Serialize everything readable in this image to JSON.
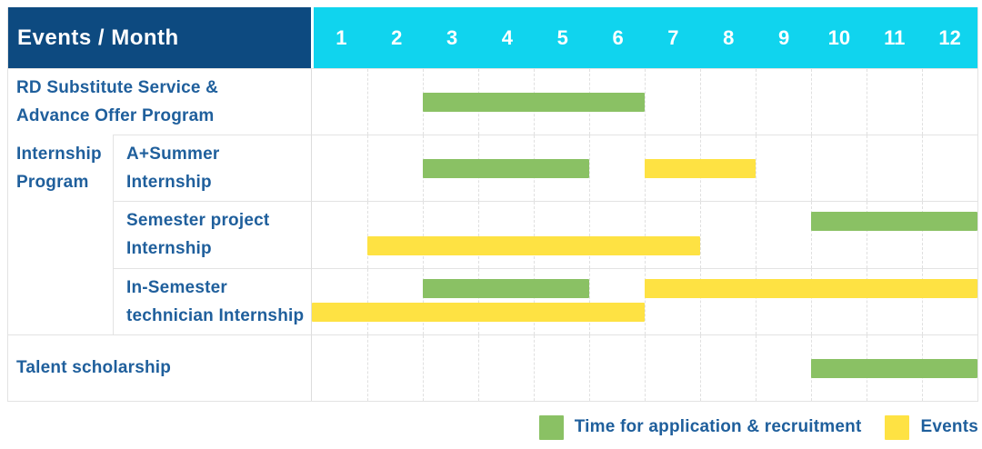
{
  "header": {
    "title": "Events / Month",
    "months": [
      "1",
      "2",
      "3",
      "4",
      "5",
      "6",
      "7",
      "8",
      "9",
      "10",
      "11",
      "12"
    ]
  },
  "colors": {
    "header_bg": "#0d4a80",
    "months_bg": "#10d4ee",
    "label_text": "#1f5f9c",
    "application": "#8ac164",
    "events": "#fee243"
  },
  "legend": {
    "items": [
      {
        "key": "application",
        "label": "Time for application & recruitment",
        "color": "#8ac164"
      },
      {
        "key": "events",
        "label": "Events",
        "color": "#fee243"
      }
    ]
  },
  "chart_data": {
    "type": "gantt",
    "unit": "month",
    "x_range": [
      1,
      12
    ],
    "group_label_lines": [
      "Internship",
      "Program"
    ],
    "rows": [
      {
        "group": null,
        "label_lines": [
          "RD Substitute Service &",
          "Advance Offer Program"
        ],
        "lanes": [
          [
            {
              "type": "application",
              "start_month": 3,
              "end_month": 6
            }
          ]
        ]
      },
      {
        "group": "Internship Program",
        "label_lines": [
          "A+Summer",
          "Internship"
        ],
        "lanes": [
          [
            {
              "type": "application",
              "start_month": 3,
              "end_month": 5
            },
            {
              "type": "events",
              "start_month": 7,
              "end_month": 8
            }
          ]
        ]
      },
      {
        "group": "Internship Program",
        "label_lines": [
          "Semester project",
          "Internship"
        ],
        "lanes": [
          [
            {
              "type": "application",
              "start_month": 10,
              "end_month": 12
            }
          ],
          [
            {
              "type": "events",
              "start_month": 2,
              "end_month": 7
            }
          ]
        ]
      },
      {
        "group": "Internship Program",
        "label_lines": [
          "In-Semester",
          "technician Internship"
        ],
        "lanes": [
          [
            {
              "type": "application",
              "start_month": 3,
              "end_month": 5
            },
            {
              "type": "events",
              "start_month": 7,
              "end_month": 12
            }
          ],
          [
            {
              "type": "events",
              "start_month": 1,
              "end_month": 6
            }
          ]
        ]
      },
      {
        "group": null,
        "label_lines": [
          "Talent scholarship"
        ],
        "lanes": [
          [
            {
              "type": "application",
              "start_month": 10,
              "end_month": 12
            }
          ]
        ]
      }
    ]
  }
}
